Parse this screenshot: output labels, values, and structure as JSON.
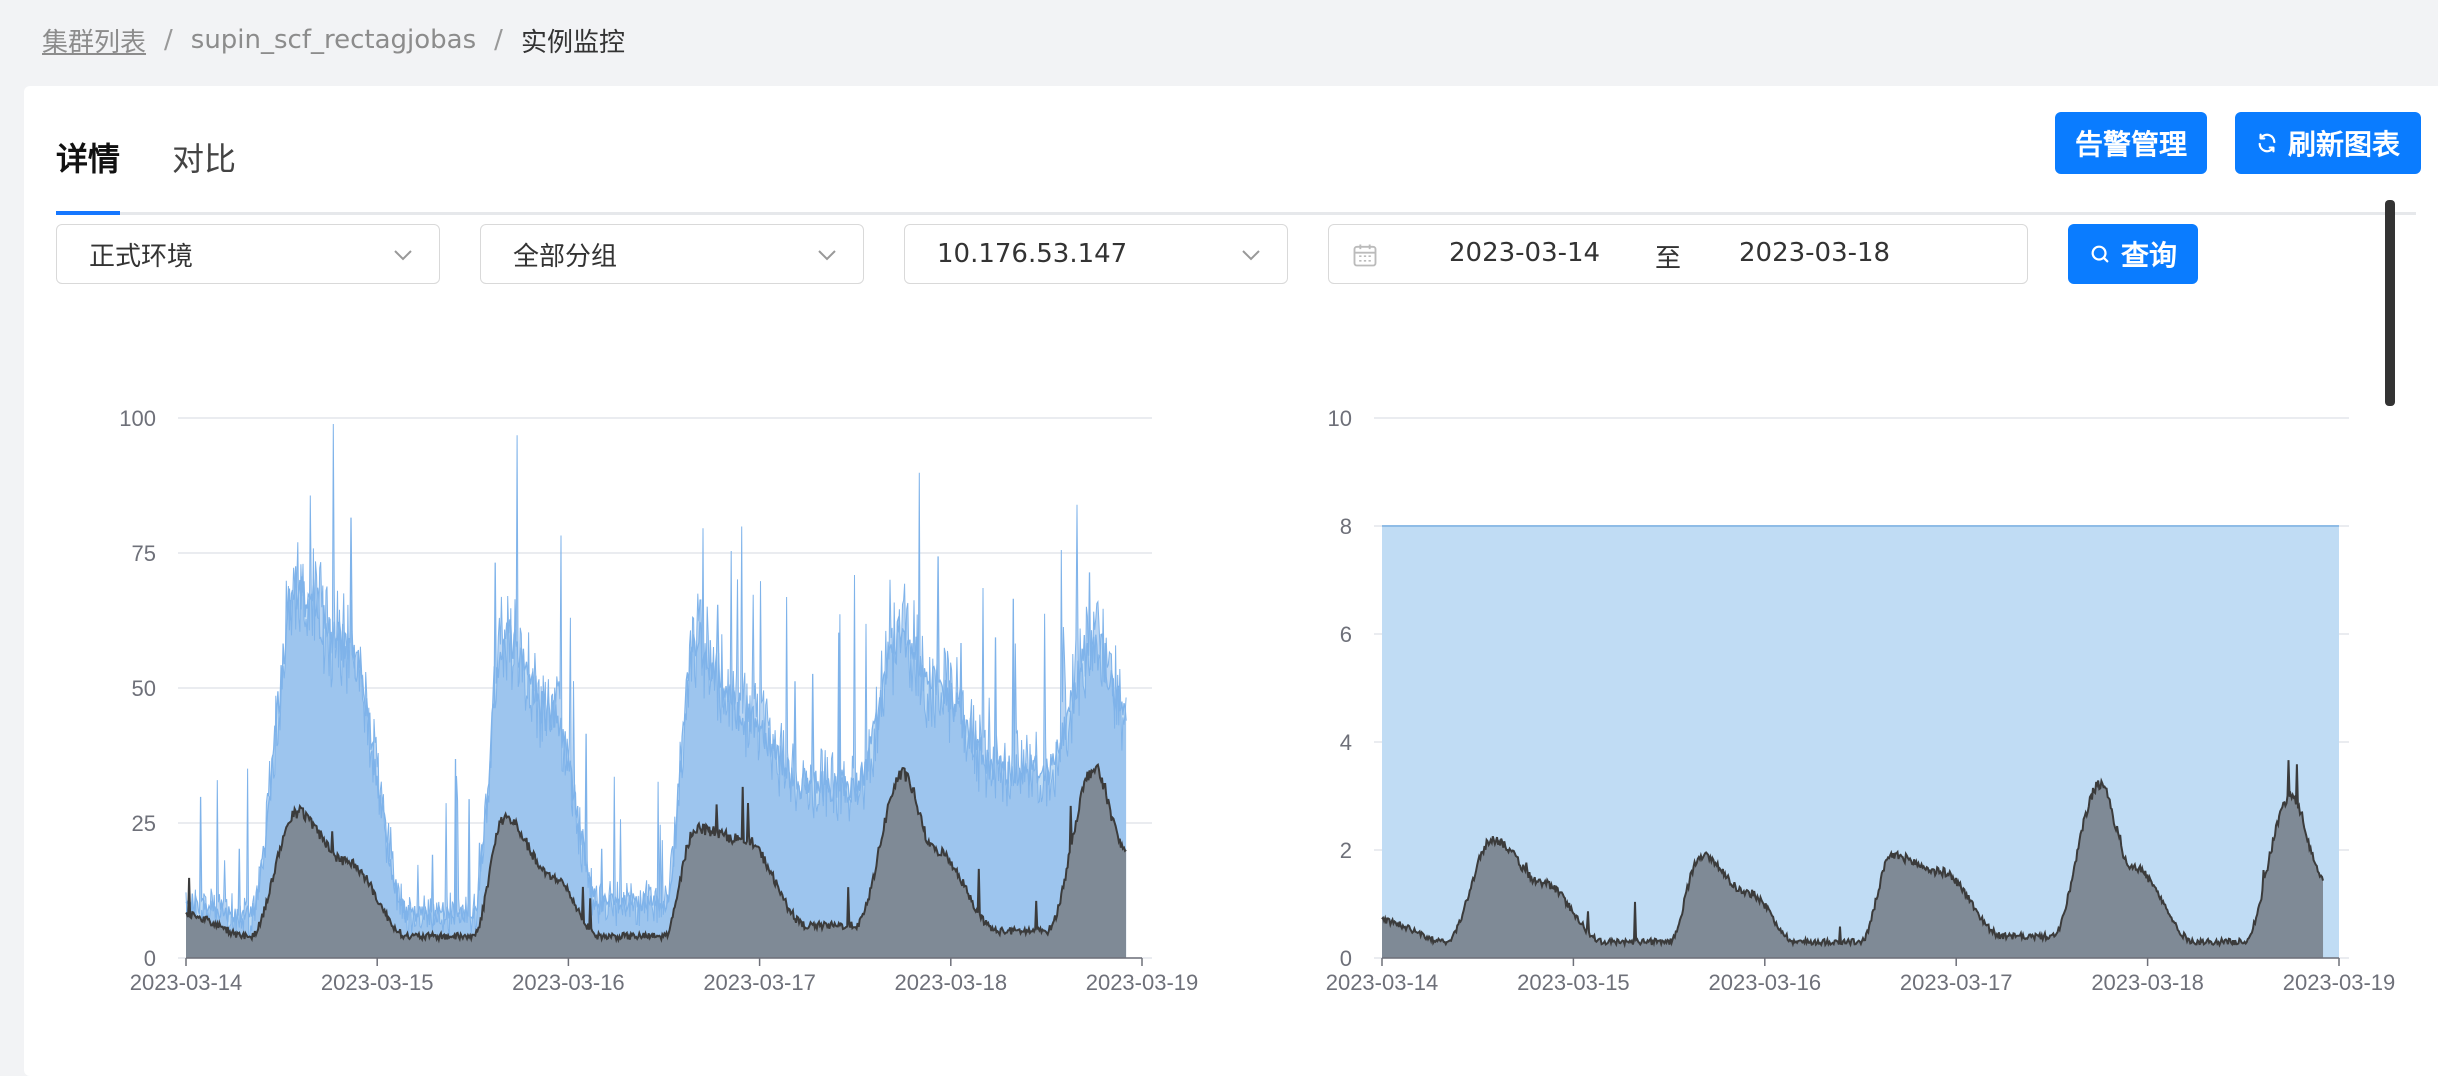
{
  "breadcrumb": {
    "items": [
      "集群列表",
      "supin_scf_rectagjobas",
      "实例监控"
    ],
    "separator": "/"
  },
  "tabs": [
    {
      "label": "详情",
      "active": true
    },
    {
      "label": "对比",
      "active": false
    }
  ],
  "toolbar": {
    "alarm_label": "告警管理",
    "refresh_label": "刷新图表",
    "query_label": "查询"
  },
  "filters": {
    "environment": "正式环境",
    "group": "全部分组",
    "instance": "10.176.53.147",
    "date_start": "2023-03-14",
    "date_separator": "至",
    "date_end": "2023-03-18"
  },
  "colors": {
    "primary": "#0a7cff",
    "series_blue": "#7fb3ea",
    "series_blue_light": "#c0dcf4",
    "series_dark": "#3b3b3b",
    "series_dark_fill": "#7f8a96"
  },
  "chart_data": [
    {
      "type": "area",
      "x_tick_labels": [
        "2023-03-14",
        "2023-03-15",
        "2023-03-16",
        "2023-03-17",
        "2023-03-18",
        "2023-03-19"
      ],
      "ylim": [
        0,
        100
      ],
      "y_ticks": [
        0,
        25,
        50,
        75,
        100
      ],
      "grid": true,
      "series": [
        {
          "x": [
            "2023-03-14 00:00",
            "2023-03-14 08:00",
            "2023-03-14 14:00",
            "2023-03-14 20:00",
            "2023-03-15 04:00",
            "2023-03-15 12:00",
            "2023-03-15 16:00",
            "2023-03-15 22:00",
            "2023-03-16 04:00",
            "2023-03-16 12:00",
            "2023-03-16 16:00",
            "2023-03-16 22:00",
            "2023-03-17 06:00",
            "2023-03-17 12:00",
            "2023-03-17 18:00",
            "2023-03-17 22:00",
            "2023-03-18 06:00",
            "2023-03-18 12:00",
            "2023-03-18 18:00",
            "2023-03-18 22:00"
          ],
          "values": [
            10,
            8,
            68,
            58,
            8,
            8,
            60,
            45,
            10,
            10,
            58,
            45,
            32,
            32,
            60,
            50,
            35,
            35,
            58,
            45
          ]
        },
        {
          "x": [
            "2023-03-14 00:00",
            "2023-03-14 08:00",
            "2023-03-14 14:00",
            "2023-03-14 20:00",
            "2023-03-15 04:00",
            "2023-03-15 12:00",
            "2023-03-15 16:00",
            "2023-03-15 22:00",
            "2023-03-16 04:00",
            "2023-03-16 12:00",
            "2023-03-16 16:00",
            "2023-03-16 22:00",
            "2023-03-17 06:00",
            "2023-03-17 12:00",
            "2023-03-17 18:00",
            "2023-03-17 22:00",
            "2023-03-18 06:00",
            "2023-03-18 12:00",
            "2023-03-18 18:00",
            "2023-03-18 22:00"
          ],
          "values": [
            8,
            4,
            27,
            18,
            4,
            4,
            26,
            15,
            4,
            4,
            24,
            22,
            6,
            6,
            34,
            20,
            5,
            5,
            35,
            20
          ]
        }
      ]
    },
    {
      "type": "area",
      "x_tick_labels": [
        "2023-03-14",
        "2023-03-15",
        "2023-03-16",
        "2023-03-17",
        "2023-03-18",
        "2023-03-19"
      ],
      "ylim": [
        0,
        10
      ],
      "y_ticks": [
        0,
        2,
        4,
        6,
        8,
        10
      ],
      "grid": true,
      "series": [
        {
          "x": [
            "2023-03-14 00:00",
            "2023-03-19 00:00"
          ],
          "values": [
            8,
            8
          ]
        },
        {
          "x": [
            "2023-03-14 00:00",
            "2023-03-14 08:00",
            "2023-03-14 14:00",
            "2023-03-14 20:00",
            "2023-03-15 04:00",
            "2023-03-15 12:00",
            "2023-03-15 16:00",
            "2023-03-15 22:00",
            "2023-03-16 04:00",
            "2023-03-16 12:00",
            "2023-03-16 16:00",
            "2023-03-16 22:00",
            "2023-03-17 06:00",
            "2023-03-17 12:00",
            "2023-03-17 18:00",
            "2023-03-17 22:00",
            "2023-03-18 06:00",
            "2023-03-18 12:00",
            "2023-03-18 18:00",
            "2023-03-18 22:00"
          ],
          "values": [
            0.7,
            0.3,
            2.2,
            1.4,
            0.3,
            0.3,
            1.9,
            1.2,
            0.3,
            0.3,
            1.9,
            1.6,
            0.4,
            0.4,
            3.2,
            1.7,
            0.3,
            0.3,
            3.0,
            1.5
          ]
        }
      ]
    }
  ]
}
